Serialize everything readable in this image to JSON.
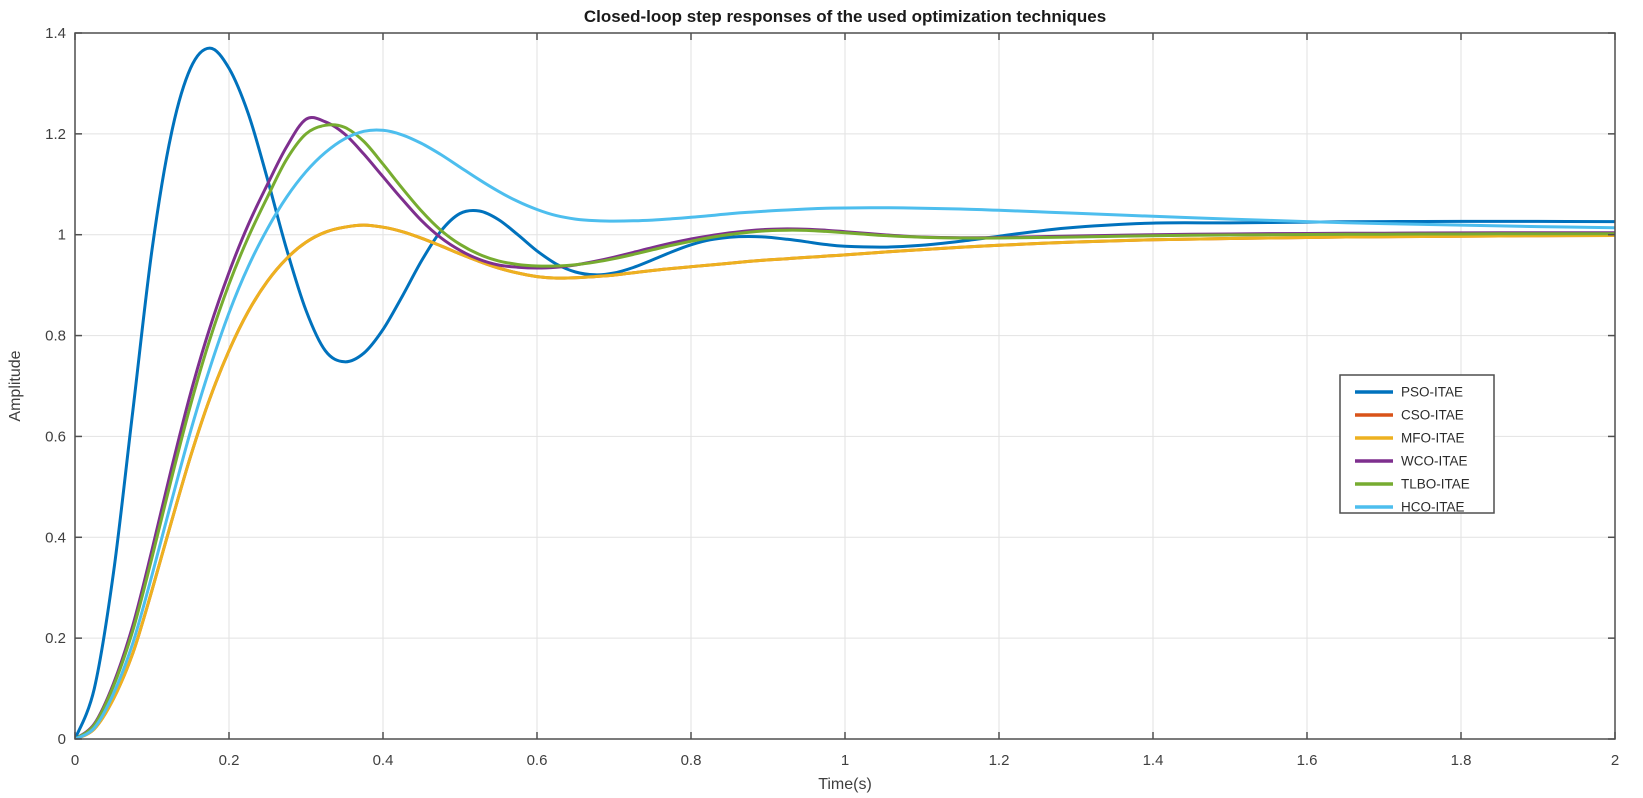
{
  "figure": {
    "background": "#ffffff",
    "axis_color": "#4f4f4f",
    "grid_color": "#e2e2e2",
    "tick_label_color": "#3f3f3f"
  },
  "chart_data": {
    "type": "line",
    "title": "Closed-loop step responses of the used optimization techniques",
    "xlabel": "Time(s)",
    "ylabel": "Amplitude",
    "xlim": [
      0,
      2
    ],
    "ylim": [
      0,
      1.4
    ],
    "x_ticks": [
      0,
      0.2,
      0.4,
      0.6,
      0.8,
      1,
      1.2,
      1.4,
      1.6,
      1.8,
      2
    ],
    "y_ticks": [
      0,
      0.2,
      0.4,
      0.6,
      0.8,
      1,
      1.2,
      1.4
    ],
    "grid": true,
    "legend_position": "right-center",
    "t": [
      0,
      0.025,
      0.05,
      0.075,
      0.1,
      0.125,
      0.15,
      0.175,
      0.2,
      0.225,
      0.25,
      0.275,
      0.3,
      0.325,
      0.35,
      0.375,
      0.4,
      0.425,
      0.45,
      0.475,
      0.5,
      0.525,
      0.55,
      0.575,
      0.6,
      0.625,
      0.65,
      0.675,
      0.7,
      0.725,
      0.75,
      0.775,
      0.8,
      0.825,
      0.85,
      0.875,
      0.9,
      0.925,
      0.95,
      0.975,
      1.0,
      1.05,
      1.1,
      1.15,
      1.2,
      1.25,
      1.3,
      1.4,
      1.5,
      1.6,
      1.7,
      1.8,
      1.9,
      2.0
    ],
    "series": [
      {
        "name": "PSO-ITAE",
        "color": "#0072BD",
        "values": [
          0,
          0.1,
          0.33,
          0.65,
          0.97,
          1.2,
          1.33,
          1.37,
          1.33,
          1.24,
          1.11,
          0.97,
          0.85,
          0.77,
          0.748,
          0.765,
          0.812,
          0.878,
          0.948,
          1.007,
          1.042,
          1.047,
          1.03,
          1.0,
          0.968,
          0.942,
          0.926,
          0.9205,
          0.924,
          0.935,
          0.95,
          0.966,
          0.98,
          0.99,
          0.995,
          0.9965,
          0.995,
          0.991,
          0.986,
          0.9805,
          0.977,
          0.9755,
          0.979,
          0.987,
          0.997,
          1.007,
          1.015,
          1.023,
          1.0235,
          1.025,
          1.026,
          1.0265,
          1.0265,
          1.026
        ]
      },
      {
        "name": "CSO-ITAE",
        "color": "#D95319",
        "note": "visually hidden beneath the MFO-ITAE curve",
        "values": [
          0,
          0.02,
          0.08,
          0.17,
          0.295,
          0.43,
          0.56,
          0.675,
          0.77,
          0.848,
          0.908,
          0.953,
          0.985,
          1.005,
          1.015,
          1.019,
          1.015,
          1.006,
          0.993,
          0.978,
          0.962,
          0.947,
          0.934,
          0.924,
          0.917,
          0.914,
          0.9145,
          0.917,
          0.92,
          0.9245,
          0.929,
          0.933,
          0.9365,
          0.94,
          0.9435,
          0.947,
          0.95,
          0.9525,
          0.955,
          0.9575,
          0.96,
          0.9655,
          0.9705,
          0.975,
          0.979,
          0.9825,
          0.9855,
          0.99,
          0.9925,
          0.9945,
          0.996,
          0.997,
          0.998,
          0.9985
        ]
      },
      {
        "name": "MFO-ITAE",
        "color": "#EDB120",
        "values": [
          0,
          0.02,
          0.08,
          0.17,
          0.295,
          0.43,
          0.56,
          0.675,
          0.77,
          0.848,
          0.908,
          0.953,
          0.985,
          1.005,
          1.015,
          1.019,
          1.015,
          1.006,
          0.993,
          0.978,
          0.962,
          0.947,
          0.934,
          0.924,
          0.917,
          0.914,
          0.9145,
          0.917,
          0.92,
          0.9245,
          0.929,
          0.933,
          0.9365,
          0.94,
          0.9435,
          0.947,
          0.95,
          0.9525,
          0.955,
          0.9575,
          0.96,
          0.9655,
          0.9705,
          0.975,
          0.979,
          0.9825,
          0.9855,
          0.99,
          0.9925,
          0.9945,
          0.996,
          0.997,
          0.998,
          0.9985
        ]
      },
      {
        "name": "WCO-ITAE",
        "color": "#7E2F8E",
        "values": [
          0,
          0.03,
          0.11,
          0.225,
          0.375,
          0.535,
          0.685,
          0.815,
          0.925,
          1.02,
          1.1,
          1.175,
          1.229,
          1.224,
          1.2,
          1.16,
          1.115,
          1.07,
          1.028,
          0.994,
          0.969,
          0.951,
          0.94,
          0.9355,
          0.934,
          0.9355,
          0.94,
          0.947,
          0.9555,
          0.965,
          0.9745,
          0.9835,
          0.9915,
          0.998,
          1.0035,
          1.008,
          1.0105,
          1.0115,
          1.011,
          1.009,
          1.006,
          1.0,
          0.9955,
          0.994,
          0.9945,
          0.996,
          0.9975,
          1.0,
          1.0015,
          1.0025,
          1.003,
          1.0035,
          1.004,
          1.004
        ]
      },
      {
        "name": "TLBO-ITAE",
        "color": "#77AC30",
        "values": [
          0,
          0.028,
          0.105,
          0.215,
          0.36,
          0.515,
          0.662,
          0.792,
          0.902,
          0.995,
          1.075,
          1.15,
          1.2,
          1.217,
          1.213,
          1.185,
          1.14,
          1.092,
          1.047,
          1.009,
          0.981,
          0.961,
          0.948,
          0.941,
          0.938,
          0.938,
          0.9405,
          0.9455,
          0.9525,
          0.961,
          0.97,
          0.979,
          0.987,
          0.9945,
          1.0005,
          1.005,
          1.008,
          1.009,
          1.0085,
          1.0065,
          1.004,
          0.9985,
          0.995,
          0.9935,
          0.9935,
          0.9945,
          0.9955,
          0.998,
          0.9995,
          1.0005,
          1.001,
          1.0015,
          1.002,
          1.002
        ]
      },
      {
        "name": "HCO-ITAE",
        "color": "#4DBEEE",
        "values": [
          0,
          0.022,
          0.09,
          0.19,
          0.325,
          0.47,
          0.61,
          0.735,
          0.845,
          0.937,
          1.012,
          1.075,
          1.125,
          1.163,
          1.19,
          1.205,
          1.207,
          1.198,
          1.181,
          1.159,
          1.134,
          1.109,
          1.086,
          1.066,
          1.05,
          1.038,
          1.031,
          1.028,
          1.027,
          1.0275,
          1.029,
          1.0315,
          1.0345,
          1.038,
          1.0415,
          1.0445,
          1.047,
          1.049,
          1.051,
          1.0525,
          1.053,
          1.0535,
          1.0525,
          1.051,
          1.0485,
          1.0455,
          1.0425,
          1.0365,
          1.031,
          1.026,
          1.022,
          1.019,
          1.016,
          1.014
        ]
      }
    ]
  }
}
